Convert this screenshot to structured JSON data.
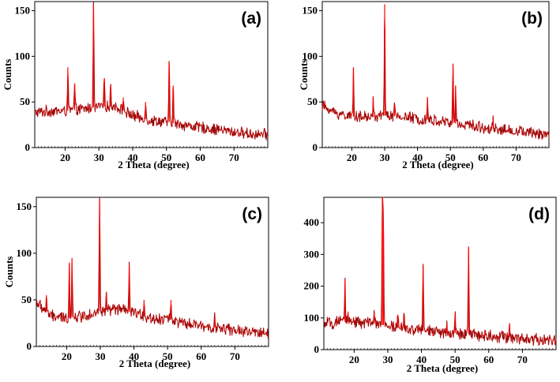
{
  "chart_data": [
    {
      "type": "line",
      "panel_label": "(a)",
      "xlabel": "2 Theta (degree)",
      "ylabel": "Counts",
      "xlim": [
        11,
        80
      ],
      "ylim": [
        0,
        160
      ],
      "xticks": [
        20,
        30,
        40,
        50,
        60,
        70
      ],
      "yticks": [
        0,
        50,
        100,
        150
      ],
      "series_colors": [
        "#ff0000",
        "#222222"
      ],
      "series": [
        {
          "name": "",
          "x": [
            11,
            15,
            20,
            25,
            30,
            35,
            40,
            45,
            50,
            55,
            60,
            65,
            70,
            75,
            80
          ],
          "y": [
            38,
            40,
            40,
            42,
            45,
            45,
            35,
            30,
            28,
            25,
            22,
            20,
            17,
            15,
            14
          ]
        }
      ],
      "peaks": [
        {
          "x": 20.8,
          "y": 88
        },
        {
          "x": 22.8,
          "y": 70
        },
        {
          "x": 28.4,
          "y": 157
        },
        {
          "x": 31.6,
          "y": 76
        },
        {
          "x": 33.5,
          "y": 68
        },
        {
          "x": 37.2,
          "y": 55
        },
        {
          "x": 43.8,
          "y": 50
        },
        {
          "x": 50.8,
          "y": 93
        },
        {
          "x": 52.0,
          "y": 68
        }
      ]
    },
    {
      "type": "line",
      "panel_label": "(b)",
      "xlabel": "2 Theta (degree)",
      "ylabel": "Counts",
      "xlim": [
        11,
        80
      ],
      "ylim": [
        0,
        160
      ],
      "xticks": [
        20,
        30,
        40,
        50,
        60,
        70
      ],
      "yticks": [
        0,
        50,
        100,
        150
      ],
      "series_colors": [
        "#ff0000",
        "#222222"
      ],
      "series": [
        {
          "name": "",
          "x": [
            11,
            15,
            20,
            25,
            30,
            35,
            40,
            45,
            50,
            55,
            60,
            65,
            70,
            75,
            80
          ],
          "y": [
            46,
            38,
            34,
            33,
            35,
            34,
            32,
            30,
            27,
            25,
            22,
            20,
            18,
            16,
            15
          ]
        }
      ],
      "peaks": [
        {
          "x": 20.5,
          "y": 88
        },
        {
          "x": 26.5,
          "y": 55
        },
        {
          "x": 30.0,
          "y": 157
        },
        {
          "x": 33.0,
          "y": 46
        },
        {
          "x": 43.0,
          "y": 55
        },
        {
          "x": 50.8,
          "y": 92
        },
        {
          "x": 51.6,
          "y": 68
        },
        {
          "x": 63.0,
          "y": 32
        }
      ]
    },
    {
      "type": "line",
      "panel_label": "(c)",
      "xlabel": "2 Theta (degree)",
      "ylabel": "Counts",
      "xlim": [
        11,
        80
      ],
      "ylim": [
        0,
        160
      ],
      "xticks": [
        20,
        30,
        40,
        50,
        60,
        70
      ],
      "yticks": [
        0,
        50,
        100,
        150
      ],
      "series_colors": [
        "#ff0000",
        "#222222"
      ],
      "series": [
        {
          "name": "",
          "x": [
            11,
            15,
            20,
            25,
            30,
            35,
            40,
            45,
            50,
            55,
            60,
            65,
            70,
            75,
            80
          ],
          "y": [
            48,
            33,
            30,
            33,
            38,
            40,
            36,
            30,
            30,
            24,
            22,
            20,
            17,
            15,
            14
          ]
        }
      ],
      "peaks": [
        {
          "x": 14.0,
          "y": 55
        },
        {
          "x": 20.8,
          "y": 90
        },
        {
          "x": 21.6,
          "y": 95
        },
        {
          "x": 29.8,
          "y": 157
        },
        {
          "x": 31.8,
          "y": 55
        },
        {
          "x": 38.6,
          "y": 87
        },
        {
          "x": 43.0,
          "y": 50
        },
        {
          "x": 51.0,
          "y": 50
        },
        {
          "x": 64.0,
          "y": 30
        }
      ]
    },
    {
      "type": "line",
      "panel_label": "(d)",
      "xlabel": "2 Theta (degree)",
      "ylabel": "",
      "xlim": [
        11,
        80
      ],
      "ylim": [
        0,
        480
      ],
      "xticks": [
        20,
        30,
        40,
        50,
        60,
        70
      ],
      "yticks": [
        0,
        100,
        200,
        300,
        400
      ],
      "series_colors": [
        "#ff0000",
        "#222222"
      ],
      "series": [
        {
          "name": "",
          "x": [
            11,
            15,
            20,
            25,
            30,
            35,
            40,
            45,
            50,
            55,
            60,
            65,
            70,
            75,
            80
          ],
          "y": [
            82,
            85,
            90,
            83,
            75,
            66,
            60,
            55,
            52,
            48,
            44,
            40,
            35,
            31,
            28
          ]
        }
      ],
      "peaks": [
        {
          "x": 17.3,
          "y": 222
        },
        {
          "x": 18.2,
          "y": 120
        },
        {
          "x": 26.0,
          "y": 115
        },
        {
          "x": 28.4,
          "y": 480
        },
        {
          "x": 28.7,
          "y": 400
        },
        {
          "x": 33.0,
          "y": 110
        },
        {
          "x": 34.8,
          "y": 105
        },
        {
          "x": 40.5,
          "y": 262
        },
        {
          "x": 47.5,
          "y": 80
        },
        {
          "x": 50.0,
          "y": 115
        },
        {
          "x": 54.0,
          "y": 325
        },
        {
          "x": 59.0,
          "y": 62
        },
        {
          "x": 66.2,
          "y": 80
        }
      ]
    }
  ]
}
